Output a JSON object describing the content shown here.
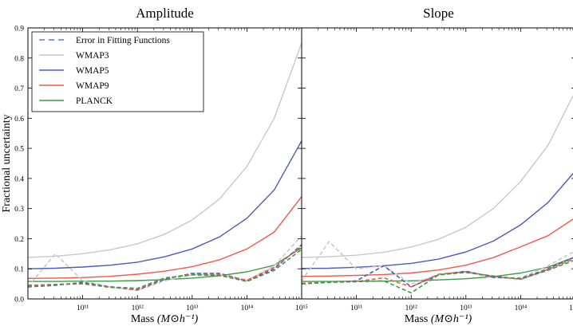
{
  "chart_data": {
    "type": "line",
    "ylabel": "Fractional uncertainty",
    "xlabel": {
      "text": "Mass",
      "unit": "(M⊙h⁻¹)"
    },
    "xscale": "log",
    "xlim": [
      10000000000.0,
      1000000000000000.0
    ],
    "ylim": [
      0,
      0.9
    ],
    "x_tick_labels": [
      "10¹¹",
      "10¹²",
      "10¹³",
      "10¹⁴",
      "10¹⁵"
    ],
    "y_tick_labels": [
      "0.0",
      "0.1",
      "0.2",
      "0.3",
      "0.4",
      "0.5",
      "0.6",
      "0.7",
      "0.8",
      "0.9"
    ],
    "legend": {
      "placement": "top-left",
      "entries": [
        {
          "label": "Error in Fitting Functions",
          "color": "#5b79c9",
          "style": "dashed"
        },
        {
          "label": "WMAP3",
          "color": "#c8c8c8",
          "style": "solid"
        },
        {
          "label": "WMAP5",
          "color": "#4a5cb5",
          "style": "solid"
        },
        {
          "label": "WMAP9",
          "color": "#f05a4a",
          "style": "solid"
        },
        {
          "label": "PLANCK",
          "color": "#3c9a4a",
          "style": "solid"
        }
      ]
    },
    "x": [
      10000000000.0,
      31600000000.0,
      100000000000.0,
      316000000000.0,
      1000000000000.0,
      3160000000000.0,
      10000000000000.0,
      31600000000000.0,
      100000000000000.0,
      316000000000000.0,
      1000000000000000.0
    ],
    "panels": [
      {
        "title": "Amplitude",
        "series": [
          {
            "name": "WMAP3",
            "color": "#c8c8c8",
            "style": "solid",
            "values": [
              0.138,
              0.142,
              0.15,
              0.163,
              0.183,
              0.215,
              0.262,
              0.332,
              0.44,
              0.6,
              0.85
            ]
          },
          {
            "name": "WMAP5",
            "color": "#4a5cb5",
            "style": "solid",
            "values": [
              0.1,
              0.102,
              0.106,
              0.112,
              0.122,
              0.14,
              0.166,
              0.206,
              0.268,
              0.362,
              0.525
            ]
          },
          {
            "name": "WMAP9",
            "color": "#f05a4a",
            "style": "solid",
            "values": [
              0.068,
              0.069,
              0.071,
              0.075,
              0.082,
              0.092,
              0.107,
              0.13,
              0.166,
              0.222,
              0.34
            ]
          },
          {
            "name": "PLANCK",
            "color": "#3c9a4a",
            "style": "solid",
            "values": [
              0.058,
              0.058,
              0.059,
              0.059,
              0.061,
              0.064,
              0.069,
              0.077,
              0.09,
              0.112,
              0.17
            ]
          },
          {
            "name": "Error in Fitting Functions (WMAP3)",
            "color": "#c8c8c8",
            "style": "dashed",
            "values": [
              0.04,
              0.15,
              0.06,
              0.04,
              0.028,
              0.06,
              0.08,
              0.08,
              0.06,
              0.11,
              0.21
            ]
          },
          {
            "name": "Error in Fitting Functions (WMAP5)",
            "color": "#4a5cb5",
            "style": "dashed",
            "values": [
              0.04,
              0.045,
              0.055,
              0.04,
              0.03,
              0.065,
              0.085,
              0.085,
              0.06,
              0.1,
              0.18
            ]
          },
          {
            "name": "Error in Fitting Functions (WMAP9)",
            "color": "#f05a4a",
            "style": "dashed",
            "values": [
              0.042,
              0.047,
              0.05,
              0.038,
              0.032,
              0.068,
              0.082,
              0.082,
              0.062,
              0.105,
              0.175
            ]
          },
          {
            "name": "Error in Fitting Functions (PLANCK)",
            "color": "#3c9a4a",
            "style": "dashed",
            "values": [
              0.045,
              0.048,
              0.052,
              0.04,
              0.035,
              0.07,
              0.08,
              0.078,
              0.058,
              0.095,
              0.165
            ]
          }
        ]
      },
      {
        "title": "Slope",
        "series": [
          {
            "name": "WMAP3",
            "color": "#c8c8c8",
            "style": "solid",
            "values": [
              0.138,
              0.14,
              0.145,
              0.155,
              0.172,
              0.198,
              0.238,
              0.3,
              0.39,
              0.51,
              0.69
            ]
          },
          {
            "name": "WMAP5",
            "color": "#4a5cb5",
            "style": "solid",
            "values": [
              0.101,
              0.102,
              0.105,
              0.11,
              0.118,
              0.132,
              0.156,
              0.192,
              0.246,
              0.32,
              0.425
            ]
          },
          {
            "name": "WMAP9",
            "color": "#f05a4a",
            "style": "solid",
            "values": [
              0.075,
              0.076,
              0.078,
              0.081,
              0.086,
              0.096,
              0.112,
              0.137,
              0.173,
              0.21,
              0.27
            ]
          },
          {
            "name": "PLANCK",
            "color": "#3c9a4a",
            "style": "solid",
            "values": [
              0.058,
              0.058,
              0.059,
              0.059,
              0.06,
              0.063,
              0.067,
              0.074,
              0.086,
              0.105,
              0.14
            ]
          },
          {
            "name": "Error in Fitting Functions (WMAP3)",
            "color": "#c8c8c8",
            "style": "dashed",
            "values": [
              0.06,
              0.19,
              0.1,
              0.11,
              0.05,
              0.08,
              0.09,
              0.07,
              0.07,
              0.11,
              0.16
            ]
          },
          {
            "name": "Error in Fitting Functions (WMAP5)",
            "color": "#4a5cb5",
            "style": "dashed",
            "values": [
              0.05,
              0.055,
              0.06,
              0.11,
              0.04,
              0.08,
              0.092,
              0.072,
              0.068,
              0.1,
              0.14
            ]
          },
          {
            "name": "Error in Fitting Functions (WMAP9)",
            "color": "#f05a4a",
            "style": "dashed",
            "values": [
              0.052,
              0.056,
              0.058,
              0.07,
              0.04,
              0.082,
              0.09,
              0.075,
              0.065,
              0.098,
              0.135
            ]
          },
          {
            "name": "Error in Fitting Functions (PLANCK)",
            "color": "#3c9a4a",
            "style": "dashed",
            "values": [
              0.05,
              0.055,
              0.057,
              0.06,
              0.02,
              0.08,
              0.088,
              0.076,
              0.066,
              0.095,
              0.13
            ]
          }
        ]
      }
    ]
  }
}
